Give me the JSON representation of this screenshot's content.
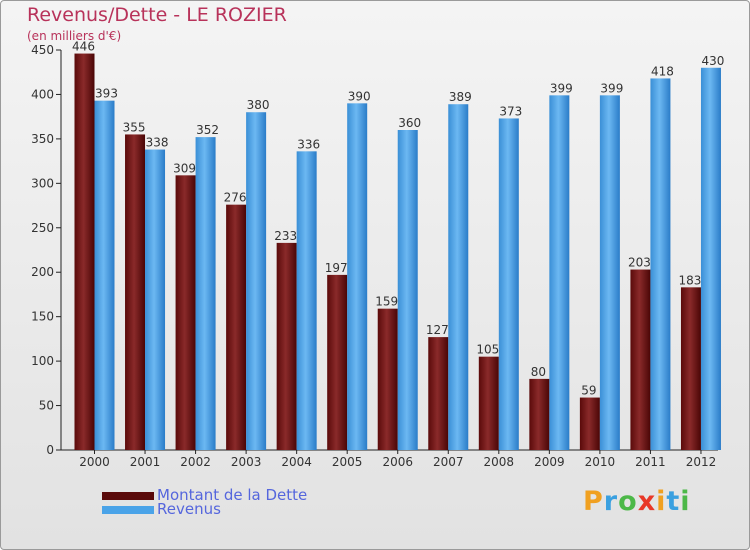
{
  "chart_data": {
    "type": "bar",
    "title": "Revenus/Dette - LE ROZIER",
    "subtitle": "(en milliers d'€)",
    "categories": [
      "2000",
      "2001",
      "2002",
      "2003",
      "2004",
      "2005",
      "2006",
      "2007",
      "2008",
      "2009",
      "2010",
      "2011",
      "2012"
    ],
    "series": [
      {
        "name": "Montant de la Dette",
        "color": "#7a1515",
        "values": [
          446,
          355,
          309,
          276,
          233,
          197,
          159,
          127,
          105,
          80,
          59,
          203,
          183
        ]
      },
      {
        "name": "Revenus",
        "color": "#4aa3e8",
        "values": [
          393,
          338,
          352,
          380,
          336,
          390,
          360,
          389,
          373,
          399,
          399,
          418,
          430
        ]
      }
    ],
    "ylim": [
      0,
      450
    ],
    "yticks": [
      0,
      50,
      100,
      150,
      200,
      250,
      300,
      350,
      400,
      450
    ],
    "grid": false,
    "legend": "bottom-left",
    "xlabel": "",
    "ylabel": ""
  },
  "branding": {
    "logo_letters": [
      "P",
      "r",
      "o",
      "x",
      "i",
      "t",
      "i"
    ],
    "logo_colors": [
      "#f0a020",
      "#3aa0e0",
      "#4cb848",
      "#e83828",
      "#f0a020",
      "#3aa0e0",
      "#4cb848"
    ]
  }
}
